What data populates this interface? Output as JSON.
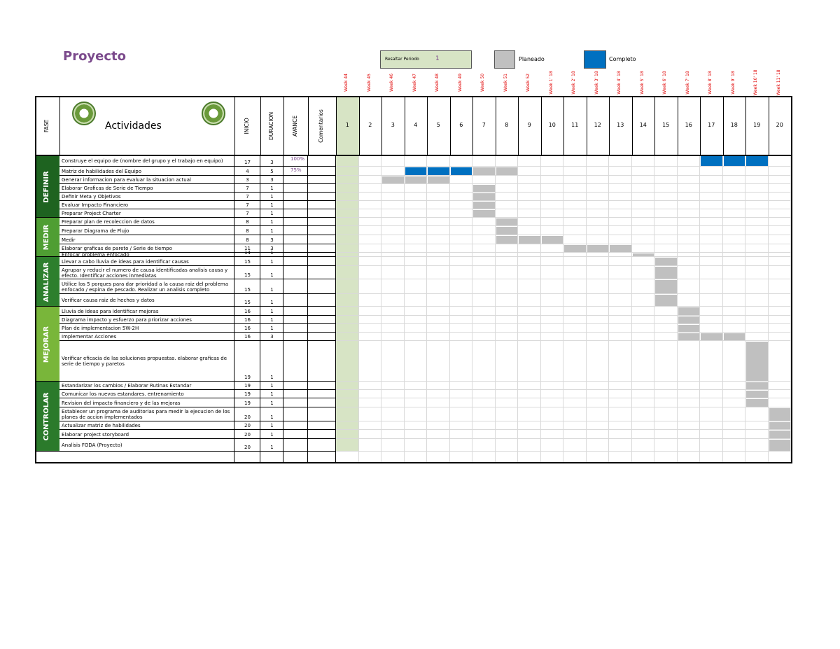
{
  "header": {
    "title": "Proyecto",
    "highlight_label": "Resaltar Periodo",
    "highlight_period": 1,
    "legend_planned": "Planeado",
    "legend_complete": "Completo"
  },
  "columns": {
    "phase": "FASE",
    "activities": "Actividades",
    "start": "INICIO",
    "duration": "DURACION",
    "progress": "AVANCE",
    "comments": "Comentarios"
  },
  "weeks": [
    "Week 44",
    "Week 45",
    "Week 46",
    "Week 47",
    "Week 48",
    "Week 49",
    "Week 50",
    "Week 51",
    "Week 52",
    "Week 1' 18",
    "Week 2' 18",
    "Week 3' 18",
    "Week 4' 18",
    "Week 5' 18",
    "Week 6' 18",
    "Week 7' 18",
    "Week 8' 18",
    "Week 9' 18",
    "Week 10' 18",
    "Week 11' 18"
  ],
  "periods": [
    1,
    2,
    3,
    4,
    5,
    6,
    7,
    8,
    9,
    10,
    11,
    12,
    13,
    14,
    15,
    16,
    17,
    18,
    19,
    20
  ],
  "phases": [
    {
      "name": "DEFINIR",
      "tasks": [
        {
          "activity": "Construye el equipo de (nombre del grupo y el trabajo en equipo)",
          "start": 17,
          "duration": 3,
          "progress": {
            "value": 100,
            "label": "100%"
          }
        },
        {
          "activity": "Matriz de habilidades del Equipo",
          "start": 4,
          "duration": 5,
          "progress": {
            "value": 75,
            "label": "75%"
          }
        },
        {
          "activity": "Generar informacion para evaluar la situacion actual",
          "start": 3,
          "duration": 3
        },
        {
          "activity": "Elaborar Graficas de Serie de Tiempo",
          "start": 7,
          "duration": 1
        },
        {
          "activity": "Definir Meta y Objetivos",
          "start": 7,
          "duration": 1
        },
        {
          "activity": "Evaluar Impacto Financiero",
          "start": 7,
          "duration": 1
        },
        {
          "activity": "Preparar Project Charter",
          "start": 7,
          "duration": 1
        }
      ]
    },
    {
      "name": "MEDIR",
      "tasks": [
        {
          "activity": "Preparar plan de recoleccion de datos",
          "start": 8,
          "duration": 1
        },
        {
          "activity": "Preparar Diagrama de Flujo",
          "start": 8,
          "duration": 1
        },
        {
          "activity": "Medir",
          "start": 8,
          "duration": 3
        },
        {
          "activity": "Elaborar graficas de pareto / Serie de tiempo",
          "start": 11,
          "duration": 3
        },
        {
          "activity": "Enfocar problema enfocado",
          "start": 14,
          "duration": 1
        }
      ]
    },
    {
      "name": "ANALIZAR",
      "tasks": [
        {
          "activity": "Llevar a cabo lluvia de ideas para identificar causas",
          "start": 15,
          "duration": 1
        },
        {
          "activity": "Agrupar y reducir el numero de causa identificadas analisis causa y efecto. Identificar acciones inmediatas",
          "start": 15,
          "duration": 1
        },
        {
          "activity": "Utilice los 5 porques para dar prioridad a la causa raiz del problema enfocado / espina de pescado. Realizar un analisis completo",
          "start": 15,
          "duration": 1
        },
        {
          "activity": "Verificar causa raiz de hechos y datos",
          "start": 15,
          "duration": 1
        }
      ]
    },
    {
      "name": "MEJORAR",
      "tasks": [
        {
          "activity": "Lluvia de ideas para identificar mejoras",
          "start": 16,
          "duration": 1
        },
        {
          "activity": "Diagrama impacto y esfuerzo para priorizar acciones",
          "start": 16,
          "duration": 1
        },
        {
          "activity": "Plan de implementacion 5W-2H",
          "start": 16,
          "duration": 1
        },
        {
          "activity": "Implementar Acciones",
          "start": 16,
          "duration": 3
        },
        {
          "activity": "Verificar eficacia de las soluciones propuestas. elaborar graficas de serie de tiempo y paretos",
          "start": 19,
          "duration": 1
        }
      ]
    },
    {
      "name": "CONTROLAR",
      "tasks": [
        {
          "activity": "Estandarizar los cambios / Elaborar Rutinas Estandar",
          "start": 19,
          "duration": 1
        },
        {
          "activity": "Comunicar los nuevos estandares. entrenamiento",
          "start": 19,
          "duration": 1
        },
        {
          "activity": "Revision del impacto financiero y de las mejoras",
          "start": 19,
          "duration": 1
        },
        {
          "activity": "Establecer un programa de auditorias para medir la ejecucion de los planes de accion implementados",
          "start": 20,
          "duration": 1
        },
        {
          "activity": "Actualizar matriz de habilidades",
          "start": 20,
          "duration": 1
        },
        {
          "activity": "Elaborar project storyboard",
          "start": 20,
          "duration": 1
        },
        {
          "activity": "Analisis FODA (Proyecto)",
          "start": 20,
          "duration": 1
        }
      ]
    }
  ]
}
